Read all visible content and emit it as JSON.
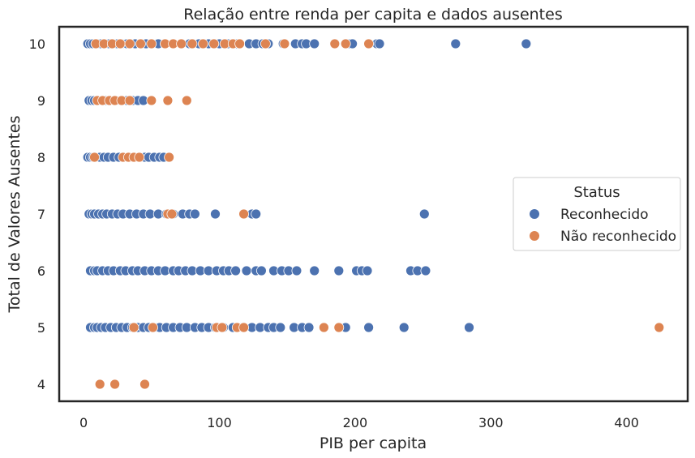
{
  "chart_data": {
    "type": "scatter",
    "title": "Relação entre renda per capita e dados ausentes",
    "xlabel": "PIB per capita",
    "ylabel": "Total de Valores Ausentes",
    "xlim": [
      -18,
      445
    ],
    "ylim": [
      3.7,
      10.3
    ],
    "xticks": [
      0,
      100,
      200,
      300,
      400
    ],
    "yticks": [
      4,
      5,
      6,
      7,
      8,
      9,
      10
    ],
    "grid": false,
    "legend": {
      "title": "Status",
      "placement": "center-right"
    },
    "series": [
      {
        "name": "Reconhecido",
        "color": "#4c72b0",
        "points": [
          [
            3,
            10
          ],
          [
            5,
            10
          ],
          [
            7,
            10
          ],
          [
            9,
            10
          ],
          [
            11,
            10
          ],
          [
            13,
            10
          ],
          [
            16,
            10
          ],
          [
            19,
            10
          ],
          [
            22,
            10
          ],
          [
            25,
            10
          ],
          [
            28,
            10
          ],
          [
            32,
            10
          ],
          [
            35,
            10
          ],
          [
            38,
            10
          ],
          [
            42,
            10
          ],
          [
            46,
            10
          ],
          [
            50,
            10
          ],
          [
            55,
            10
          ],
          [
            60,
            10
          ],
          [
            66,
            10
          ],
          [
            72,
            10
          ],
          [
            78,
            10
          ],
          [
            85,
            10
          ],
          [
            92,
            10
          ],
          [
            100,
            10
          ],
          [
            106,
            10
          ],
          [
            113,
            10
          ],
          [
            122,
            10
          ],
          [
            127,
            10
          ],
          [
            132,
            10
          ],
          [
            136,
            10
          ],
          [
            147,
            10
          ],
          [
            156,
            10
          ],
          [
            161,
            10
          ],
          [
            164,
            10
          ],
          [
            170,
            10
          ],
          [
            196,
            10
          ],
          [
            198,
            10
          ],
          [
            216,
            10
          ],
          [
            218,
            10
          ],
          [
            274,
            10
          ],
          [
            326,
            10
          ],
          [
            4,
            9
          ],
          [
            6,
            9
          ],
          [
            8,
            9
          ],
          [
            10,
            9
          ],
          [
            13,
            9
          ],
          [
            16,
            9
          ],
          [
            20,
            9
          ],
          [
            24,
            9
          ],
          [
            28,
            9
          ],
          [
            32,
            9
          ],
          [
            36,
            9
          ],
          [
            40,
            9
          ],
          [
            44,
            9
          ],
          [
            3,
            8
          ],
          [
            5,
            8
          ],
          [
            7,
            8
          ],
          [
            9,
            8
          ],
          [
            12,
            8
          ],
          [
            15,
            8
          ],
          [
            18,
            8
          ],
          [
            22,
            8
          ],
          [
            26,
            8
          ],
          [
            30,
            8
          ],
          [
            34,
            8
          ],
          [
            38,
            8
          ],
          [
            42,
            8
          ],
          [
            45,
            8
          ],
          [
            48,
            8
          ],
          [
            52,
            8
          ],
          [
            56,
            8
          ],
          [
            59,
            8
          ],
          [
            4,
            7
          ],
          [
            6,
            7
          ],
          [
            8,
            7
          ],
          [
            11,
            7
          ],
          [
            14,
            7
          ],
          [
            17,
            7
          ],
          [
            21,
            7
          ],
          [
            25,
            7
          ],
          [
            29,
            7
          ],
          [
            34,
            7
          ],
          [
            39,
            7
          ],
          [
            44,
            7
          ],
          [
            49,
            7
          ],
          [
            55,
            7
          ],
          [
            61,
            7
          ],
          [
            66,
            7
          ],
          [
            73,
            7
          ],
          [
            78,
            7
          ],
          [
            82,
            7
          ],
          [
            97,
            7
          ],
          [
            124,
            7
          ],
          [
            127,
            7
          ],
          [
            251,
            7
          ],
          [
            5,
            6
          ],
          [
            8,
            6
          ],
          [
            10,
            6
          ],
          [
            14,
            6
          ],
          [
            18,
            6
          ],
          [
            22,
            6
          ],
          [
            27,
            6
          ],
          [
            31,
            6
          ],
          [
            36,
            6
          ],
          [
            40,
            6
          ],
          [
            45,
            6
          ],
          [
            50,
            6
          ],
          [
            55,
            6
          ],
          [
            60,
            6
          ],
          [
            66,
            6
          ],
          [
            70,
            6
          ],
          [
            75,
            6
          ],
          [
            80,
            6
          ],
          [
            86,
            6
          ],
          [
            92,
            6
          ],
          [
            98,
            6
          ],
          [
            103,
            6
          ],
          [
            107,
            6
          ],
          [
            112,
            6
          ],
          [
            120,
            6
          ],
          [
            127,
            6
          ],
          [
            131,
            6
          ],
          [
            140,
            6
          ],
          [
            146,
            6
          ],
          [
            151,
            6
          ],
          [
            157,
            6
          ],
          [
            170,
            6
          ],
          [
            188,
            6
          ],
          [
            201,
            6
          ],
          [
            205,
            6
          ],
          [
            209,
            6
          ],
          [
            241,
            6
          ],
          [
            246,
            6
          ],
          [
            252,
            6
          ],
          [
            5,
            5
          ],
          [
            8,
            5
          ],
          [
            10,
            5
          ],
          [
            13,
            5
          ],
          [
            16,
            5
          ],
          [
            20,
            5
          ],
          [
            24,
            5
          ],
          [
            28,
            5
          ],
          [
            32,
            5
          ],
          [
            36,
            5
          ],
          [
            40,
            5
          ],
          [
            44,
            5
          ],
          [
            48,
            5
          ],
          [
            52,
            5
          ],
          [
            56,
            5
          ],
          [
            61,
            5
          ],
          [
            66,
            5
          ],
          [
            71,
            5
          ],
          [
            76,
            5
          ],
          [
            82,
            5
          ],
          [
            87,
            5
          ],
          [
            92,
            5
          ],
          [
            97,
            5
          ],
          [
            103,
            5
          ],
          [
            110,
            5
          ],
          [
            117,
            5
          ],
          [
            124,
            5
          ],
          [
            130,
            5
          ],
          [
            136,
            5
          ],
          [
            140,
            5
          ],
          [
            145,
            5
          ],
          [
            155,
            5
          ],
          [
            161,
            5
          ],
          [
            166,
            5
          ],
          [
            193,
            5
          ],
          [
            210,
            5
          ],
          [
            236,
            5
          ],
          [
            284,
            5
          ]
        ]
      },
      {
        "name": "Não reconhecido",
        "color": "#dd8452",
        "points": [
          [
            9,
            10
          ],
          [
            15,
            10
          ],
          [
            21,
            10
          ],
          [
            27,
            10
          ],
          [
            34,
            10
          ],
          [
            42,
            10
          ],
          [
            50,
            10
          ],
          [
            60,
            10
          ],
          [
            66,
            10
          ],
          [
            72,
            10
          ],
          [
            80,
            10
          ],
          [
            88,
            10
          ],
          [
            96,
            10
          ],
          [
            104,
            10
          ],
          [
            110,
            10
          ],
          [
            115,
            10
          ],
          [
            134,
            10
          ],
          [
            148,
            10
          ],
          [
            185,
            10
          ],
          [
            193,
            10
          ],
          [
            210,
            10
          ],
          [
            10,
            9
          ],
          [
            14,
            9
          ],
          [
            19,
            9
          ],
          [
            23,
            9
          ],
          [
            28,
            9
          ],
          [
            34,
            9
          ],
          [
            50,
            9
          ],
          [
            62,
            9
          ],
          [
            76,
            9
          ],
          [
            8,
            8
          ],
          [
            29,
            8
          ],
          [
            33,
            8
          ],
          [
            37,
            8
          ],
          [
            41,
            8
          ],
          [
            63,
            8
          ],
          [
            62,
            7
          ],
          [
            65,
            7
          ],
          [
            118,
            7
          ],
          [
            37,
            5
          ],
          [
            51,
            5
          ],
          [
            98,
            5
          ],
          [
            102,
            5
          ],
          [
            113,
            5
          ],
          [
            118,
            5
          ],
          [
            177,
            5
          ],
          [
            188,
            5
          ],
          [
            424,
            5
          ],
          [
            12,
            4
          ],
          [
            23,
            4
          ],
          [
            45,
            4
          ]
        ]
      }
    ]
  }
}
